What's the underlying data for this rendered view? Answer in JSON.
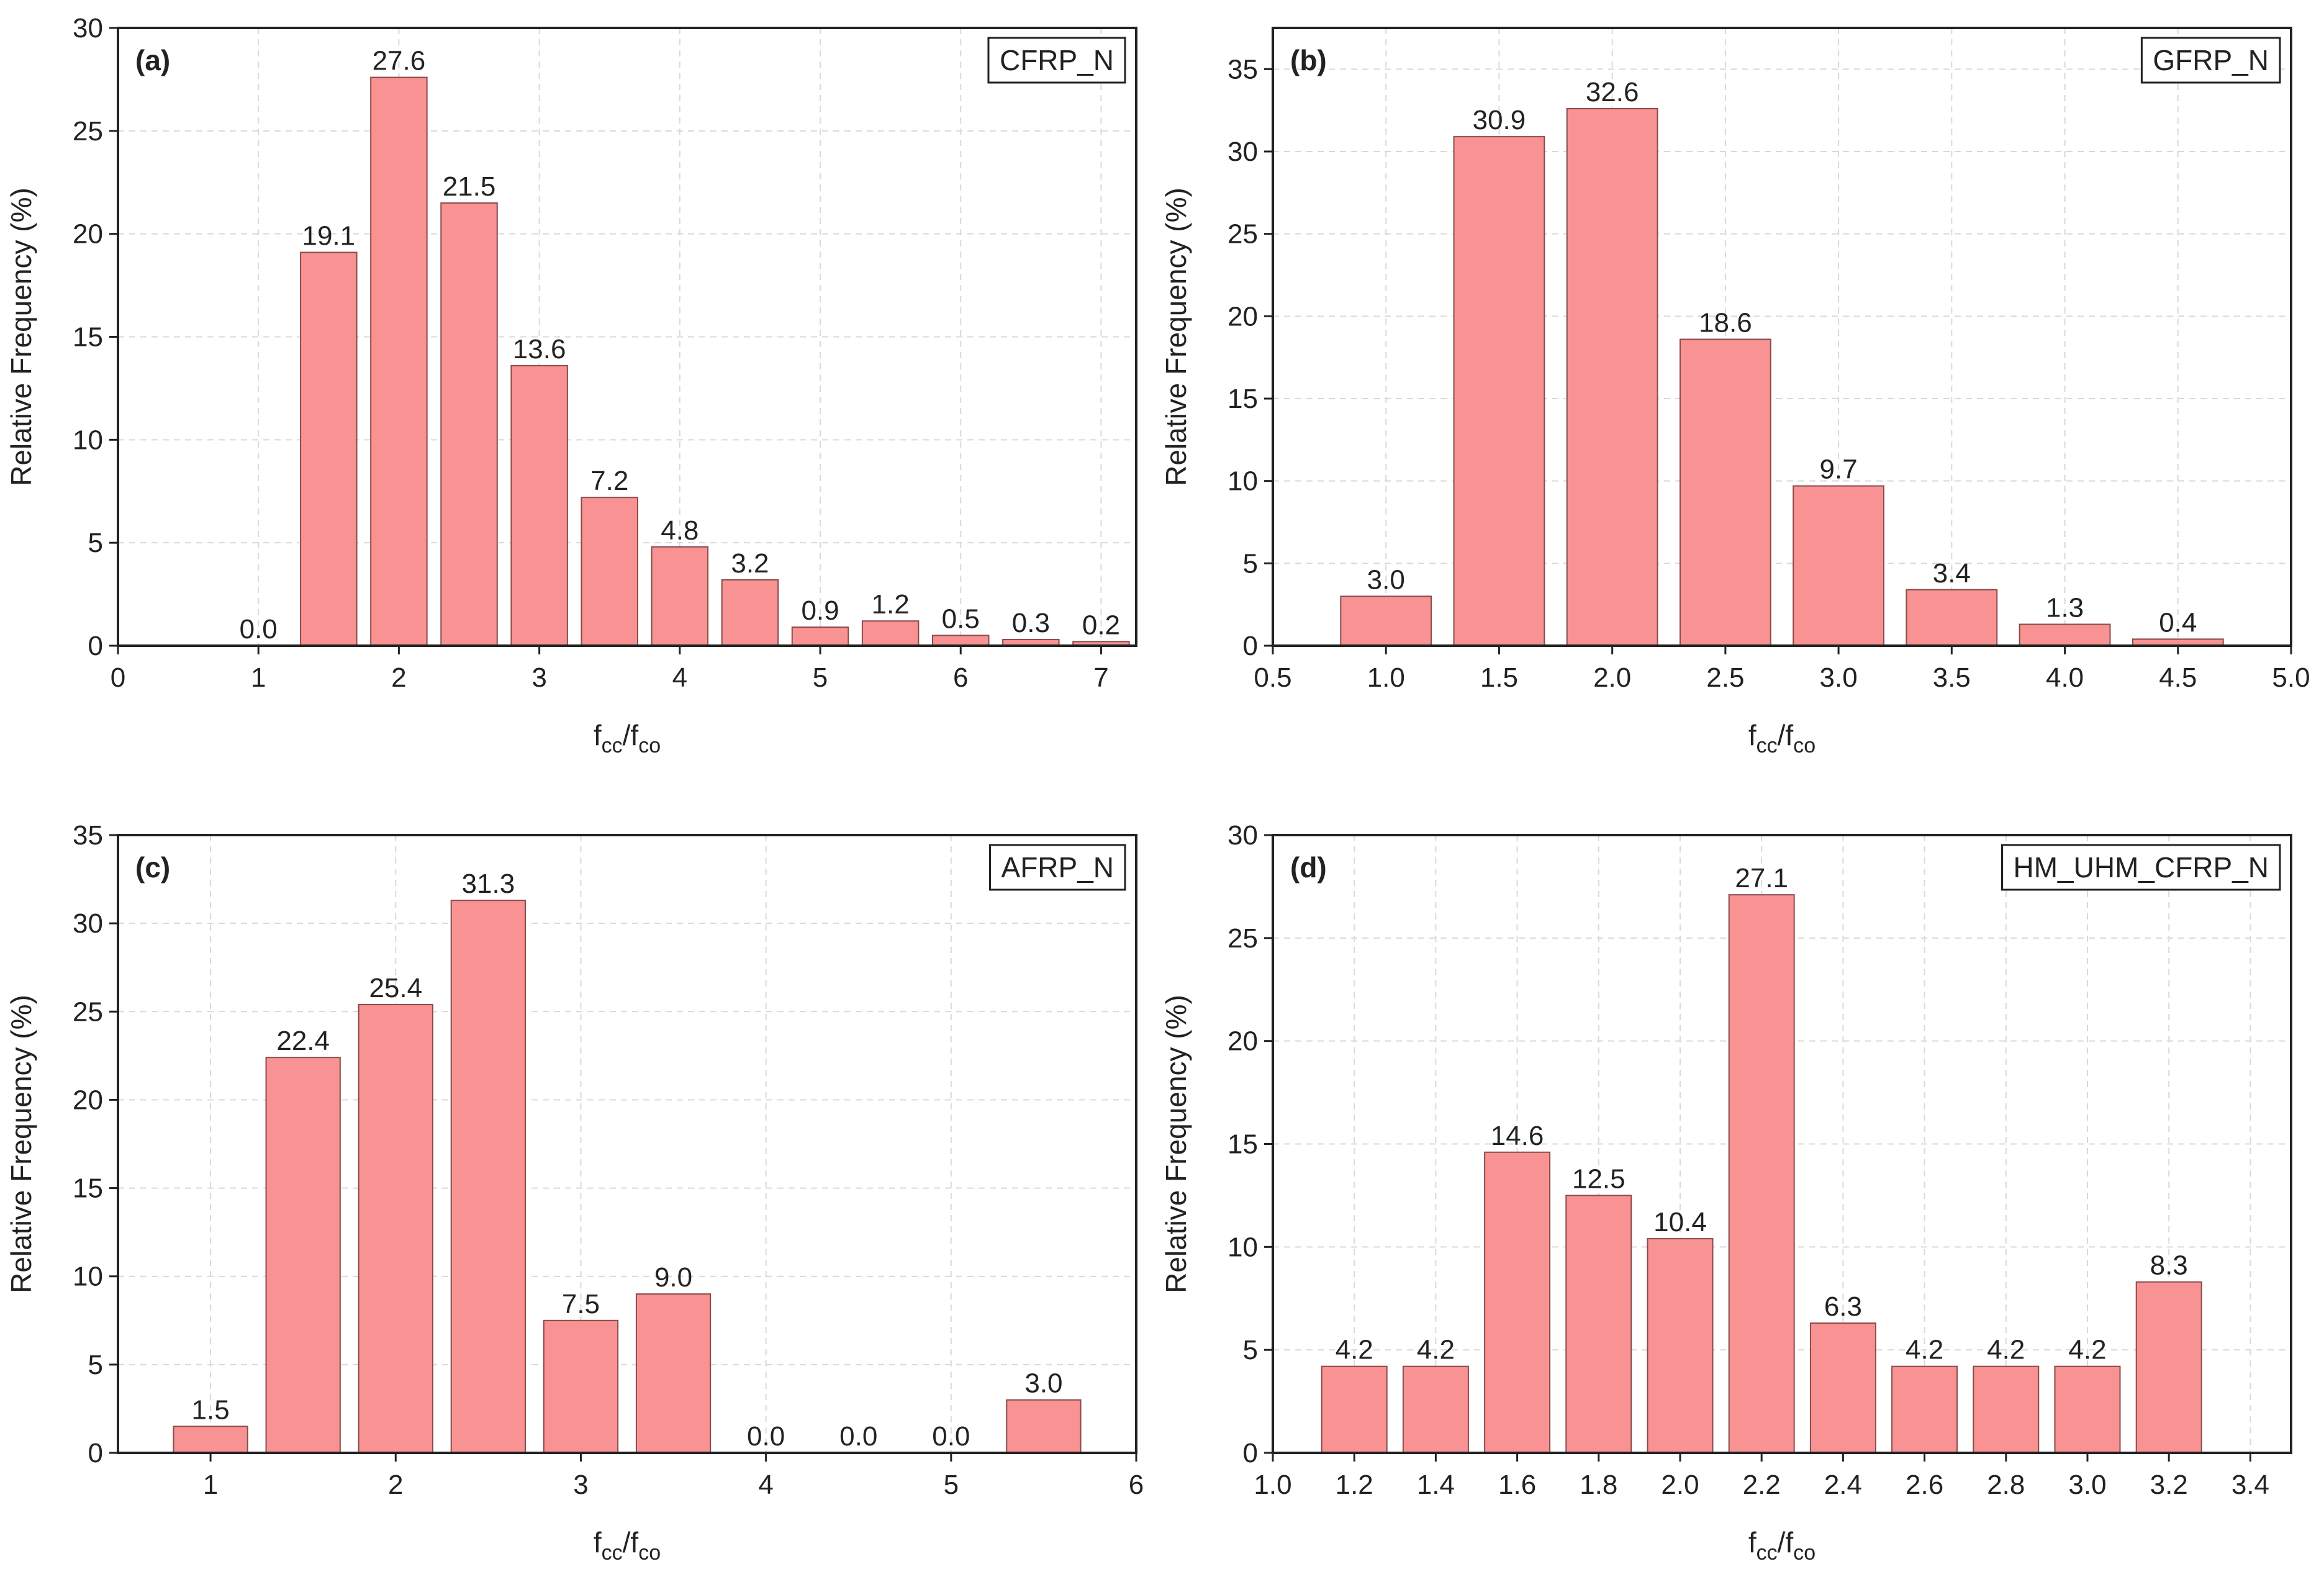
{
  "figure": {
    "bar_color": "#f99393",
    "bar_edge_color": "#8a4a4a",
    "grid_color": "#d9d9d9",
    "axis_color": "#222222"
  },
  "chart_data": [
    {
      "type": "bar",
      "panel_label": "(a)",
      "legend": "CFRP_N",
      "legend_position": "top-right",
      "xlabel_main": "f",
      "xlabel_sub1": "cc",
      "xlabel_sep": "/f",
      "xlabel_sub2": "co",
      "ylabel": "Relative Frequency (%)",
      "grid": true,
      "xlim": [
        0,
        7.25
      ],
      "ylim": [
        0,
        30
      ],
      "bar_width": 0.4,
      "x_ticks": [
        0,
        1,
        2,
        3,
        4,
        5,
        6,
        7
      ],
      "x_tick_labels": [
        "0",
        "1",
        "2",
        "3",
        "4",
        "5",
        "6",
        "7"
      ],
      "y_ticks": [
        0,
        5,
        10,
        15,
        20,
        25,
        30
      ],
      "y_tick_labels": [
        "0",
        "5",
        "10",
        "15",
        "20",
        "25",
        "30"
      ],
      "x": [
        1.0,
        1.5,
        2.0,
        2.5,
        3.0,
        3.5,
        4.0,
        4.5,
        5.0,
        5.5,
        6.0,
        6.5,
        7.0
      ],
      "values": [
        0.0,
        19.1,
        27.6,
        21.5,
        13.6,
        7.2,
        4.8,
        3.2,
        0.9,
        1.2,
        0.5,
        0.3,
        0.2
      ],
      "value_labels": [
        "0.0",
        "19.1",
        "27.6",
        "21.5",
        "13.6",
        "7.2",
        "4.8",
        "3.2",
        "0.9",
        "1.2",
        "0.5",
        "0.3",
        "0.2"
      ]
    },
    {
      "type": "bar",
      "panel_label": "(b)",
      "legend": "GFRP_N",
      "legend_position": "top-right",
      "xlabel_main": "f",
      "xlabel_sub1": "cc",
      "xlabel_sep": "/f",
      "xlabel_sub2": "co",
      "ylabel": "Relative Frequency (%)",
      "grid": true,
      "xlim": [
        0.5,
        5.0
      ],
      "ylim": [
        0,
        37.5
      ],
      "bar_width": 0.4,
      "x_ticks": [
        0.5,
        1.0,
        1.5,
        2.0,
        2.5,
        3.0,
        3.5,
        4.0,
        4.5,
        5.0
      ],
      "x_tick_labels": [
        "0.5",
        "1.0",
        "1.5",
        "2.0",
        "2.5",
        "3.0",
        "3.5",
        "4.0",
        "4.5",
        "5.0"
      ],
      "y_ticks": [
        0,
        5,
        10,
        15,
        20,
        25,
        30,
        35
      ],
      "y_tick_labels": [
        "0",
        "5",
        "10",
        "15",
        "20",
        "25",
        "30",
        "35"
      ],
      "x": [
        1.0,
        1.5,
        2.0,
        2.5,
        3.0,
        3.5,
        4.0,
        4.5
      ],
      "values": [
        3.0,
        30.9,
        32.6,
        18.6,
        9.7,
        3.4,
        1.3,
        0.4
      ],
      "value_labels": [
        "3.0",
        "30.9",
        "32.6",
        "18.6",
        "9.7",
        "3.4",
        "1.3",
        "0.4"
      ]
    },
    {
      "type": "bar",
      "panel_label": "(c)",
      "legend": "AFRP_N",
      "legend_position": "top-right",
      "xlabel_main": "f",
      "xlabel_sub1": "cc",
      "xlabel_sep": "/f",
      "xlabel_sub2": "co",
      "ylabel": "Relative Frequency (%)",
      "grid": true,
      "xlim": [
        0.5,
        6.0
      ],
      "ylim": [
        0,
        35
      ],
      "bar_width": 0.4,
      "x_ticks": [
        1,
        2,
        3,
        4,
        5,
        6
      ],
      "x_tick_labels": [
        "1",
        "2",
        "3",
        "4",
        "5",
        "6"
      ],
      "y_ticks": [
        0,
        5,
        10,
        15,
        20,
        25,
        30,
        35
      ],
      "y_tick_labels": [
        "0",
        "5",
        "10",
        "15",
        "20",
        "25",
        "30",
        "35"
      ],
      "x": [
        1.0,
        1.5,
        2.0,
        2.5,
        3.0,
        3.5,
        4.0,
        4.5,
        5.0,
        5.5
      ],
      "values": [
        1.5,
        22.4,
        25.4,
        31.3,
        7.5,
        9.0,
        0.0,
        0.0,
        0.0,
        3.0
      ],
      "value_labels": [
        "1.5",
        "22.4",
        "25.4",
        "31.3",
        "7.5",
        "9.0",
        "0.0",
        "0.0",
        "0.0",
        "3.0"
      ]
    },
    {
      "type": "bar",
      "panel_label": "(d)",
      "legend": "HM_UHM_CFRP_N",
      "legend_position": "top-right",
      "xlabel_main": "f",
      "xlabel_sub1": "cc",
      "xlabel_sep": "/f",
      "xlabel_sub2": "co",
      "ylabel": "Relative Frequency (%)",
      "grid": true,
      "xlim": [
        1.0,
        3.5
      ],
      "ylim": [
        0,
        30
      ],
      "bar_width": 0.16,
      "x_ticks": [
        1.0,
        1.2,
        1.4,
        1.6,
        1.8,
        2.0,
        2.2,
        2.4,
        2.6,
        2.8,
        3.0,
        3.2,
        3.4
      ],
      "x_tick_labels": [
        "1.0",
        "1.2",
        "1.4",
        "1.6",
        "1.8",
        "2.0",
        "2.2",
        "2.4",
        "2.6",
        "2.8",
        "3.0",
        "3.2",
        "3.4"
      ],
      "y_ticks": [
        0,
        5,
        10,
        15,
        20,
        25,
        30
      ],
      "y_tick_labels": [
        "0",
        "5",
        "10",
        "15",
        "20",
        "25",
        "30"
      ],
      "x": [
        1.2,
        1.4,
        1.6,
        1.8,
        2.0,
        2.2,
        2.4,
        2.6,
        2.8,
        3.0,
        3.2
      ],
      "values": [
        4.2,
        4.2,
        14.6,
        12.5,
        10.4,
        27.1,
        6.3,
        4.2,
        4.2,
        4.2,
        8.3
      ],
      "value_labels": [
        "4.2",
        "4.2",
        "14.6",
        "12.5",
        "10.4",
        "27.1",
        "6.3",
        "4.2",
        "4.2",
        "4.2",
        "8.3"
      ]
    }
  ]
}
